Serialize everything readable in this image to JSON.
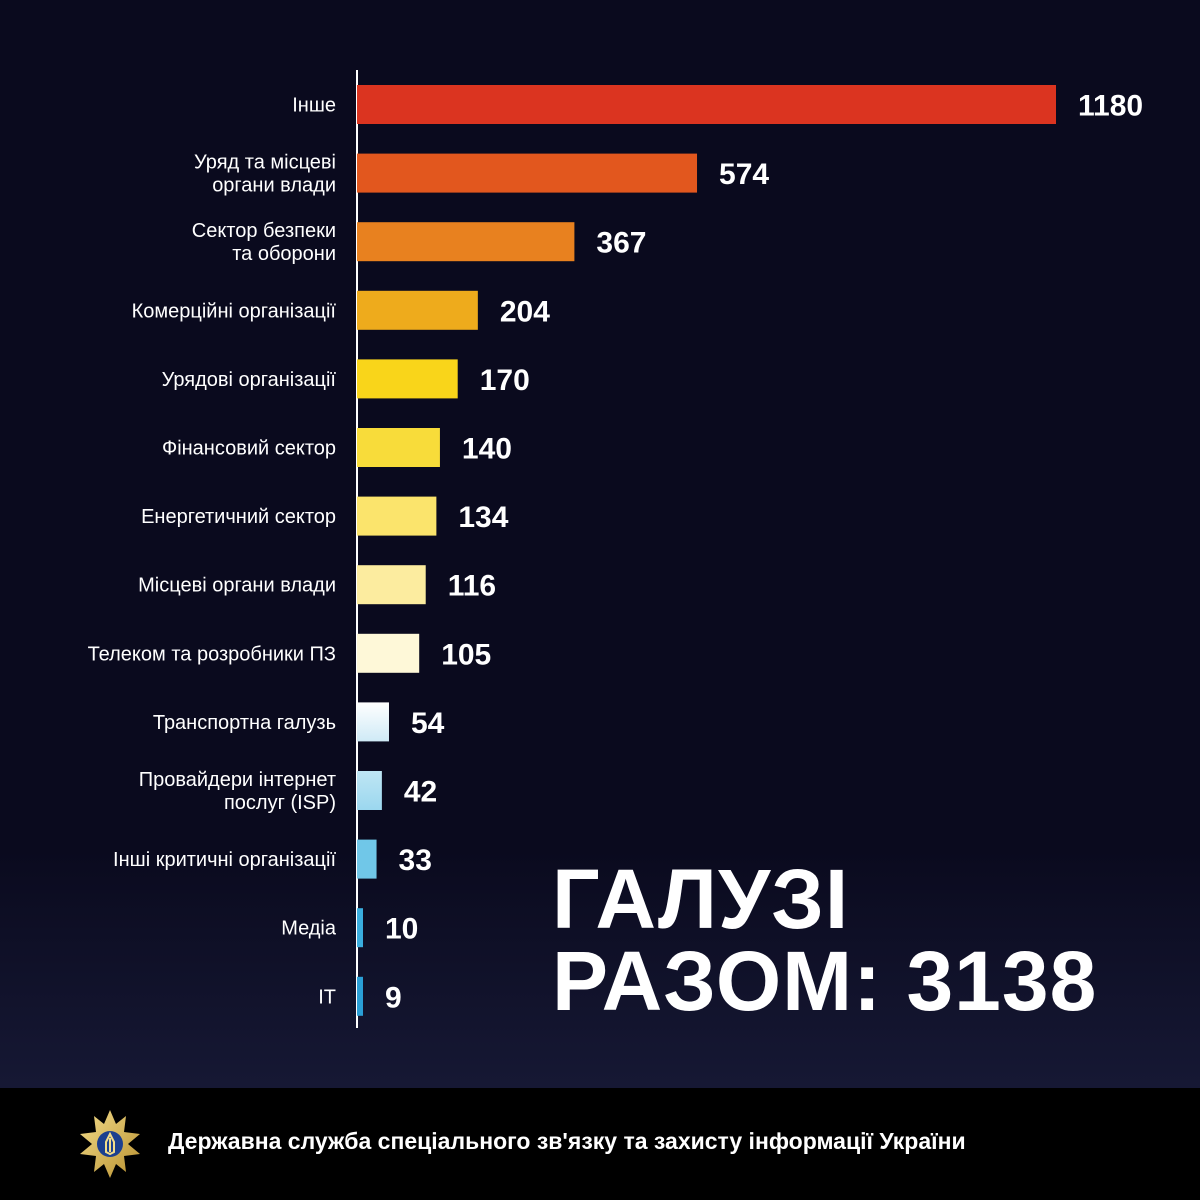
{
  "chart_data": {
    "type": "bar",
    "orientation": "horizontal",
    "categories": [
      [
        "Інше"
      ],
      [
        "Уряд та місцеві",
        "органи влади"
      ],
      [
        "Сектор безпеки",
        "та оборони"
      ],
      [
        "Комерційні організації"
      ],
      [
        "Урядові організації"
      ],
      [
        "Фінансовий сектор"
      ],
      [
        "Енергетичний сектор"
      ],
      [
        "Місцеві органи влади"
      ],
      [
        "Телеком та розробники ПЗ"
      ],
      [
        "Транспортна галузь"
      ],
      [
        "Провайдери інтернет",
        "послуг (ISP)"
      ],
      [
        "Інші критичні організації"
      ],
      [
        "Медіа"
      ],
      [
        "IT"
      ]
    ],
    "values": [
      1180,
      574,
      367,
      204,
      170,
      140,
      134,
      116,
      105,
      54,
      42,
      33,
      10,
      9
    ],
    "value_labels": [
      "1180",
      "574",
      "367",
      "204",
      "170",
      "140",
      "134",
      "116",
      "105",
      "54",
      "42",
      "33",
      "10",
      "9"
    ],
    "colors": [
      "#db3420",
      "#e2571e",
      "#e8811f",
      "#eeab1c",
      "#f9d51a",
      "#f8dc3a",
      "#fbe46c",
      "#fcec9f",
      "#fef8d8",
      "#ffffff",
      "#bfe6f4",
      "#70c7e8",
      "#3aaedf",
      "#2a9fd6"
    ],
    "gradient_end_colors": [
      null,
      null,
      null,
      null,
      null,
      null,
      null,
      null,
      null,
      "#cfeaf6",
      "#9bd7ef",
      null,
      null,
      null
    ],
    "xlim": [
      0,
      1180
    ],
    "grid": false,
    "legend": "none"
  },
  "headline": {
    "line1": "ГАЛУЗІ",
    "line2": "РАЗОМ: 3138"
  },
  "footer": {
    "org_name": "Державна служба спеціального зв'язку та захисту інформації України",
    "emblem_icon": "ssscip-emblem-icon"
  }
}
